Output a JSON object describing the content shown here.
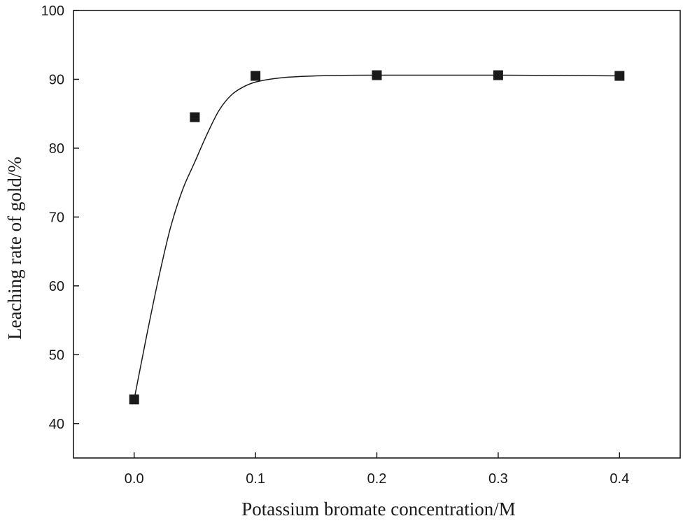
{
  "chart_data": {
    "type": "scatter",
    "xlabel": "Potassium bromate concentration/M",
    "ylabel": "Leaching rate of gold/%",
    "xlim": [
      -0.05,
      0.45
    ],
    "ylim": [
      35,
      100
    ],
    "xticks": [
      "0.0",
      "0.1",
      "0.2",
      "0.3",
      "0.4"
    ],
    "yticks": [
      "40",
      "50",
      "60",
      "70",
      "80",
      "90",
      "100"
    ],
    "grid": false,
    "legend": "none",
    "series": [
      {
        "marker": "square",
        "color": "#1a1a1a",
        "x": [
          0.0,
          0.05,
          0.1,
          0.2,
          0.3,
          0.4
        ],
        "y": [
          43.5,
          84.5,
          90.5,
          90.6,
          90.6,
          90.5
        ]
      }
    ],
    "fit_curve": {
      "color": "#1a1a1a",
      "x": [
        0.0,
        0.01,
        0.02,
        0.03,
        0.04,
        0.05,
        0.06,
        0.07,
        0.08,
        0.09,
        0.1,
        0.12,
        0.15,
        0.2,
        0.3,
        0.4
      ],
      "y": [
        43.5,
        52.5,
        61.0,
        68.5,
        74.0,
        78.0,
        82.0,
        85.5,
        87.7,
        88.9,
        89.6,
        90.2,
        90.5,
        90.6,
        90.6,
        90.5
      ]
    }
  }
}
